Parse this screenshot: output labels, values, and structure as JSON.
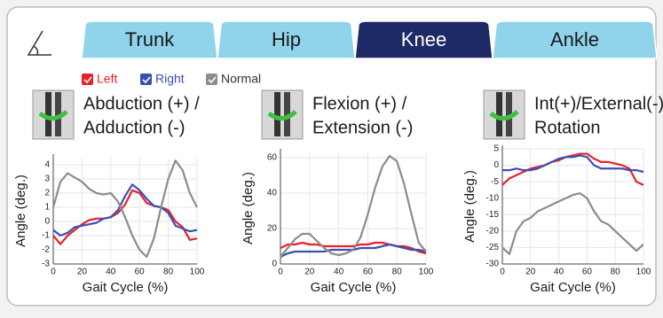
{
  "tabs": [
    "Trunk",
    "Hip",
    "Knee",
    "Ankle"
  ],
  "active_tab": 2,
  "legend": [
    {
      "label": "Left",
      "color": "#e8212b"
    },
    {
      "label": "Right",
      "color": "#3a4fb5"
    },
    {
      "label": "Normal",
      "color": "#8c8c8c"
    }
  ],
  "chart_data": [
    {
      "type": "line",
      "title": [
        "Abduction (+) /",
        "Adduction (-)"
      ],
      "x_label": "Gait Cycle (%)",
      "y_label": "Angle (deg.)",
      "x": [
        0,
        5,
        10,
        15,
        20,
        25,
        30,
        35,
        40,
        45,
        50,
        55,
        60,
        65,
        70,
        75,
        80,
        85,
        90,
        95,
        100
      ],
      "xlim": [
        0,
        100
      ],
      "xticks": [
        0,
        20,
        40,
        60,
        80,
        100
      ],
      "ylim": [
        -3,
        4.5
      ],
      "yticks": [
        -3,
        -2,
        -1,
        0,
        1,
        2,
        3,
        4
      ],
      "grid": true,
      "series": [
        {
          "color": "#e8212b",
          "values": [
            -1,
            -1.6,
            -1,
            -0.6,
            -0.2,
            0.1,
            0.2,
            0.2,
            0.3,
            0.6,
            1.2,
            2.2,
            2,
            1.3,
            1.1,
            1,
            0.8,
            0,
            -0.4,
            -1.3,
            -1.2
          ]
        },
        {
          "color": "#3a4fb5",
          "values": [
            -0.6,
            -1,
            -0.8,
            -0.4,
            -0.3,
            -0.2,
            -0.1,
            0.2,
            0.3,
            0.8,
            1.8,
            2.6,
            2.2,
            1.6,
            1.1,
            1,
            0.6,
            -0.3,
            -0.5,
            -0.7,
            -0.6
          ]
        },
        {
          "color": "#8c8c8c",
          "values": [
            1,
            2.8,
            3.4,
            3.1,
            2.8,
            2.3,
            2,
            1.9,
            2,
            1.4,
            0.3,
            -1,
            -2,
            -2.5,
            -1.2,
            1,
            3,
            4.3,
            3.6,
            2,
            1
          ]
        }
      ]
    },
    {
      "type": "line",
      "title": [
        "Flexion (+) /",
        "Extension (-)"
      ],
      "x_label": "Gait Cycle (%)",
      "y_label": "Angle (deg.)",
      "x": [
        0,
        5,
        10,
        15,
        20,
        25,
        30,
        35,
        40,
        45,
        50,
        55,
        60,
        65,
        70,
        75,
        80,
        85,
        90,
        95,
        100
      ],
      "xlim": [
        0,
        100
      ],
      "xticks": [
        0,
        20,
        40,
        60,
        80,
        100
      ],
      "ylim": [
        0,
        63
      ],
      "yticks": [
        0,
        20,
        40,
        60
      ],
      "grid": true,
      "series": [
        {
          "color": "#e8212b",
          "values": [
            9,
            11,
            11,
            12,
            11,
            11,
            10,
            10,
            10,
            10,
            10,
            11,
            11,
            12,
            12,
            11,
            10,
            10,
            9,
            7,
            6
          ]
        },
        {
          "color": "#3a4fb5",
          "values": [
            4,
            6,
            7,
            7,
            7,
            7,
            7,
            8,
            8,
            8,
            8,
            9,
            9,
            9,
            10,
            11,
            10,
            9,
            8,
            8,
            7
          ]
        },
        {
          "color": "#8c8c8c",
          "values": [
            4,
            9,
            14,
            17,
            17,
            13,
            9,
            6,
            5,
            6,
            8,
            15,
            28,
            43,
            55,
            61,
            58,
            45,
            28,
            12,
            7
          ]
        }
      ]
    },
    {
      "type": "line",
      "title": [
        "Int(+)/External(-)",
        "Rotation"
      ],
      "x_label": "Gait Cycle (%)",
      "y_label": "Angle (deg.)",
      "x": [
        0,
        5,
        10,
        15,
        20,
        25,
        30,
        35,
        40,
        45,
        50,
        55,
        60,
        65,
        70,
        75,
        80,
        85,
        90,
        95,
        100
      ],
      "xlim": [
        0,
        100
      ],
      "xticks": [
        0,
        20,
        40,
        60,
        80,
        100
      ],
      "ylim": [
        -30,
        5
      ],
      "yticks": [
        5,
        0,
        -5,
        -10,
        -15,
        -20,
        -25,
        -30
      ],
      "grid": true,
      "series": [
        {
          "color": "#e8212b",
          "values": [
            -6,
            -4,
            -3,
            -2,
            -1,
            -0.5,
            0,
            1,
            1.5,
            2.5,
            3,
            3.5,
            3.5,
            2,
            1,
            1,
            0.5,
            0,
            -1,
            -5,
            -6
          ]
        },
        {
          "color": "#3a4fb5",
          "values": [
            -1.5,
            -1.5,
            -1,
            -1.5,
            -1.5,
            -1,
            0,
            1,
            2,
            2.5,
            2.5,
            3,
            2.5,
            0,
            -1,
            -1,
            -1,
            -1,
            -1.5,
            -1.5,
            -2
          ]
        },
        {
          "color": "#8c8c8c",
          "values": [
            -25,
            -27,
            -20,
            -17,
            -16,
            -14,
            -13,
            -12,
            -11,
            -10,
            -9,
            -8.5,
            -10,
            -14,
            -17,
            -18,
            -20,
            -22,
            -24,
            -26,
            -24
          ]
        }
      ]
    }
  ]
}
